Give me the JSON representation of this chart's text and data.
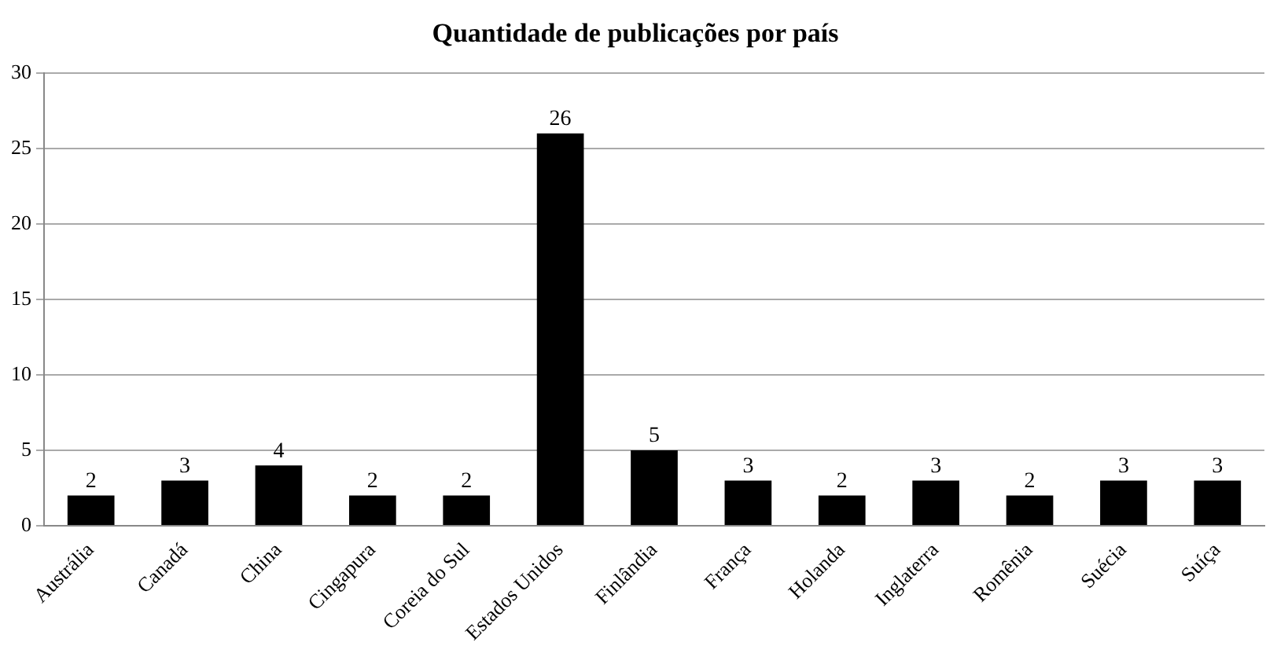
{
  "chart_data": {
    "type": "bar",
    "title": "Quantidade de publicações por país",
    "categories": [
      "Austrália",
      "Canadá",
      "China",
      "Cingapura",
      "Coreia do Sul",
      "Estados Unidos",
      "Finlândia",
      "França",
      "Holanda",
      "Inglaterra",
      "Romênia",
      "Suécia",
      "Suíça"
    ],
    "values": [
      2,
      3,
      4,
      2,
      2,
      26,
      5,
      3,
      2,
      3,
      2,
      3,
      3
    ],
    "color": "#000000",
    "ylim": [
      0,
      30
    ],
    "yticks": [
      0,
      5,
      10,
      15,
      20,
      25,
      30
    ],
    "grid": "y",
    "data_labels": true
  }
}
